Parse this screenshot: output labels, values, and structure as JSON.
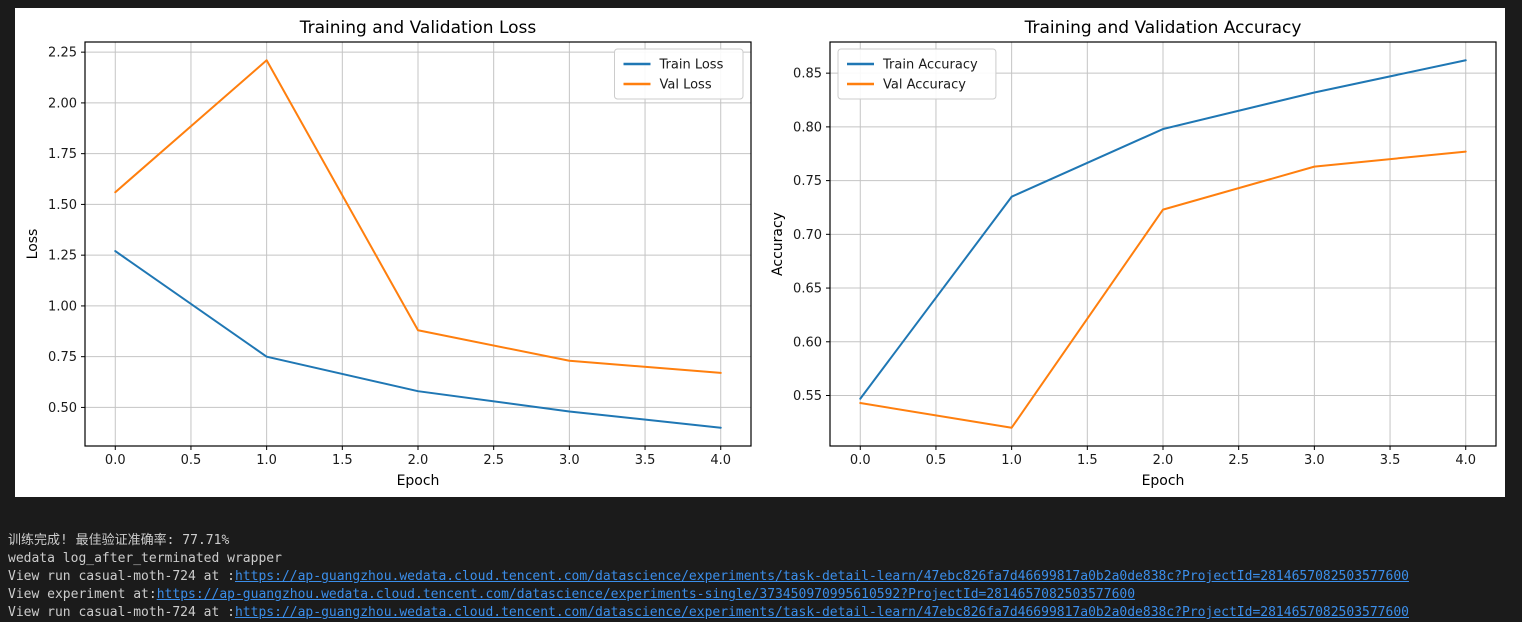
{
  "colors": {
    "background": "#1b1b1b",
    "figure_bg": "#ffffff",
    "grid": "#c4c4c4",
    "spine": "#000000",
    "train_line": "#1f77b4",
    "val_line": "#ff7f0e",
    "terminal_text": "#cccccc",
    "link": "#3b8eea"
  },
  "chart_data": [
    {
      "type": "line",
      "title": "Training and Validation Loss",
      "xlabel": "Epoch",
      "ylabel": "Loss",
      "x": [
        0,
        1,
        2,
        3,
        4
      ],
      "series": [
        {
          "name": "Train Loss",
          "color": "#1f77b4",
          "values": [
            1.27,
            0.75,
            0.58,
            0.48,
            0.4
          ]
        },
        {
          "name": "Val Loss",
          "color": "#ff7f0e",
          "values": [
            1.56,
            2.21,
            0.88,
            0.73,
            0.67
          ]
        }
      ],
      "xlim": [
        -0.2,
        4.2
      ],
      "ylim": [
        0.31,
        2.3
      ],
      "xticks": [
        0,
        0.5,
        1,
        1.5,
        2,
        2.5,
        3,
        3.5,
        4
      ],
      "xtick_labels": [
        "0.0",
        "0.5",
        "1.0",
        "1.5",
        "2.0",
        "2.5",
        "3.0",
        "3.5",
        "4.0"
      ],
      "yticks": [
        0.5,
        0.75,
        1.0,
        1.25,
        1.5,
        1.75,
        2.0,
        2.25
      ],
      "ytick_labels": [
        "0.50",
        "0.75",
        "1.00",
        "1.25",
        "1.50",
        "1.75",
        "2.00",
        "2.25"
      ],
      "grid": true,
      "legend_pos": "upper-right"
    },
    {
      "type": "line",
      "title": "Training and Validation Accuracy",
      "xlabel": "Epoch",
      "ylabel": "Accuracy",
      "x": [
        0,
        1,
        2,
        3,
        4
      ],
      "series": [
        {
          "name": "Train Accuracy",
          "color": "#1f77b4",
          "values": [
            0.547,
            0.735,
            0.798,
            0.832,
            0.862
          ]
        },
        {
          "name": "Val Accuracy",
          "color": "#ff7f0e",
          "values": [
            0.543,
            0.52,
            0.723,
            0.763,
            0.777
          ]
        }
      ],
      "xlim": [
        -0.2,
        4.2
      ],
      "ylim": [
        0.503,
        0.879
      ],
      "xticks": [
        0,
        0.5,
        1,
        1.5,
        2,
        2.5,
        3,
        3.5,
        4
      ],
      "xtick_labels": [
        "0.0",
        "0.5",
        "1.0",
        "1.5",
        "2.0",
        "2.5",
        "3.0",
        "3.5",
        "4.0"
      ],
      "yticks": [
        0.55,
        0.6,
        0.65,
        0.7,
        0.75,
        0.8,
        0.85
      ],
      "ytick_labels": [
        "0.55",
        "0.60",
        "0.65",
        "0.70",
        "0.75",
        "0.80",
        "0.85"
      ],
      "grid": true,
      "legend_pos": "upper-left"
    }
  ],
  "terminal": {
    "line1": "训练完成! 最佳验证准确率: 77.71%",
    "line2": "wedata log_after_terminated wrapper",
    "line3_prefix": "View run casual-moth-724 at :",
    "line3_url": "https://ap-guangzhou.wedata.cloud.tencent.com/datascience/experiments/task-detail-learn/47ebc826fa7d46699817a0b2a0de838c?ProjectId=2814657082503577600",
    "line4_prefix": "View experiment at:",
    "line4_url": "https://ap-guangzhou.wedata.cloud.tencent.com/datascience/experiments-single/373450970995610592?ProjectId=2814657082503577600",
    "line5_prefix": "View run casual-moth-724 at :",
    "line5_url": "https://ap-guangzhou.wedata.cloud.tencent.com/datascience/experiments/task-detail-learn/47ebc826fa7d46699817a0b2a0de838c?ProjectId=2814657082503577600"
  }
}
